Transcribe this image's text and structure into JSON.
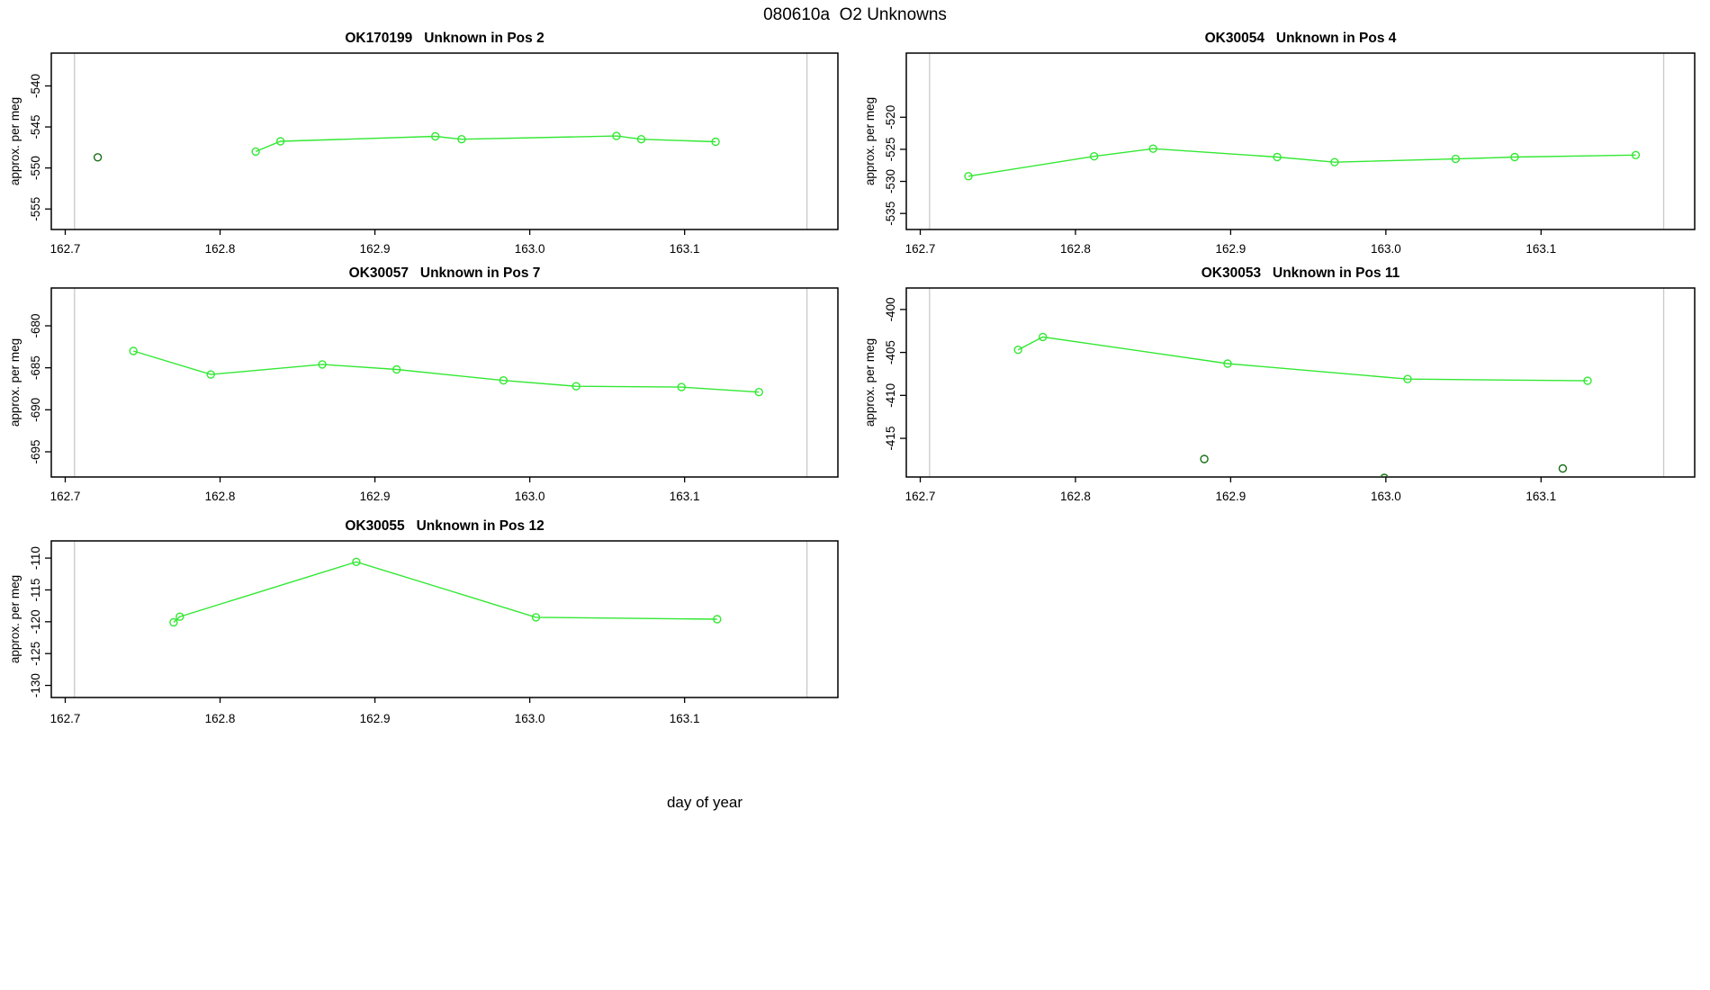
{
  "main_title": "080610a  O2 Unknowns",
  "outer_xlabel": "day of year",
  "colors": {
    "series": "#33e833",
    "flagged": "#176e17",
    "abline": "#c8c8c8",
    "axis": "#000000",
    "background": "#ffffff"
  },
  "chart_data": [
    {
      "type": "line",
      "title": "OK170199   Unknown in Pos 2",
      "sample_id": "OK170199",
      "condition": "Unknown in Pos 2",
      "ylabel": "approx. per meg",
      "xlim": [
        162.691,
        163.199
      ],
      "ylim": [
        -557.5,
        -536.0
      ],
      "xticks": [
        162.7,
        162.8,
        162.9,
        163.0,
        163.1
      ],
      "xtick_labels": [
        "162.7",
        "162.8",
        "162.9",
        "163.0",
        "163.1"
      ],
      "yticks": [
        -540,
        -545,
        -550,
        -555
      ],
      "ytick_labels": [
        "-540",
        "-545",
        "-550",
        "-555"
      ],
      "ablines_x": [
        162.706,
        163.179
      ],
      "series": [
        {
          "name": "run-values",
          "color_key": "series",
          "line": true,
          "points": [
            [
              162.823,
              -548.0
            ],
            [
              162.839,
              -546.75
            ],
            [
              162.939,
              -546.15
            ],
            [
              162.956,
              -546.5
            ],
            [
              163.056,
              -546.1
            ],
            [
              163.072,
              -546.5
            ],
            [
              163.12,
              -546.8
            ]
          ]
        },
        {
          "name": "flagged-values",
          "color_key": "flagged",
          "line": false,
          "points": [
            [
              162.721,
              -548.7
            ]
          ]
        }
      ]
    },
    {
      "type": "line",
      "title": "OK30054   Unknown in Pos 4",
      "sample_id": "OK30054",
      "condition": "Unknown in Pos 4",
      "ylabel": "approx. per meg",
      "xlim": [
        162.691,
        163.199
      ],
      "ylim": [
        -537.5,
        -510.0
      ],
      "xticks": [
        162.7,
        162.8,
        162.9,
        163.0,
        163.1
      ],
      "xtick_labels": [
        "162.7",
        "162.8",
        "162.9",
        "163.0",
        "163.1"
      ],
      "yticks": [
        -520,
        -525,
        -530,
        -535
      ],
      "ytick_labels": [
        "-520",
        "-525",
        "-530",
        "-535"
      ],
      "ablines_x": [
        162.706,
        163.179
      ],
      "series": [
        {
          "name": "run-values",
          "color_key": "series",
          "line": true,
          "points": [
            [
              162.731,
              -529.2
            ],
            [
              162.812,
              -526.1
            ],
            [
              162.85,
              -524.9
            ],
            [
              162.93,
              -526.2
            ],
            [
              162.967,
              -527.0
            ],
            [
              163.045,
              -526.5
            ],
            [
              163.083,
              -526.2
            ],
            [
              163.161,
              -525.9
            ]
          ]
        }
      ]
    },
    {
      "type": "line",
      "title": "OK30057   Unknown in Pos 7",
      "sample_id": "OK30057",
      "condition": "Unknown in Pos 7",
      "ylabel": "approx. per meg",
      "xlim": [
        162.691,
        163.199
      ],
      "ylim": [
        -698.0,
        -675.5
      ],
      "xticks": [
        162.7,
        162.8,
        162.9,
        163.0,
        163.1
      ],
      "xtick_labels": [
        "162.7",
        "162.8",
        "162.9",
        "163.0",
        "163.1"
      ],
      "yticks": [
        -680,
        -685,
        -690,
        -695
      ],
      "ytick_labels": [
        "-680",
        "-685",
        "-690",
        "-695"
      ],
      "ablines_x": [
        162.706,
        163.179
      ],
      "series": [
        {
          "name": "run-values",
          "color_key": "series",
          "line": true,
          "points": [
            [
              162.744,
              -683.0
            ],
            [
              162.794,
              -685.8
            ],
            [
              162.866,
              -684.6
            ],
            [
              162.914,
              -685.2
            ],
            [
              162.983,
              -686.5
            ],
            [
              163.03,
              -687.2
            ],
            [
              163.098,
              -687.3
            ],
            [
              163.148,
              -687.9
            ]
          ]
        }
      ]
    },
    {
      "type": "line",
      "title": "OK30053   Unknown in Pos 11",
      "sample_id": "OK30053",
      "condition": "Unknown in Pos 11",
      "ylabel": "approx. per meg",
      "xlim": [
        162.691,
        163.199
      ],
      "ylim": [
        -419.5,
        -397.5
      ],
      "xticks": [
        162.7,
        162.8,
        162.9,
        163.0,
        163.1
      ],
      "xtick_labels": [
        "162.7",
        "162.8",
        "162.9",
        "163.0",
        "163.1"
      ],
      "yticks": [
        -400,
        -405,
        -410,
        -415
      ],
      "ytick_labels": [
        "-400",
        "-405",
        "-410",
        "-415"
      ],
      "ablines_x": [
        162.706,
        163.179
      ],
      "series": [
        {
          "name": "run-values",
          "color_key": "series",
          "line": true,
          "points": [
            [
              162.763,
              -404.7
            ],
            [
              162.779,
              -403.2
            ],
            [
              162.898,
              -406.3
            ],
            [
              163.014,
              -408.1
            ],
            [
              163.13,
              -408.3
            ]
          ]
        },
        {
          "name": "flagged-values",
          "color_key": "flagged",
          "line": false,
          "points": [
            [
              162.883,
              -417.4
            ],
            [
              162.999,
              -419.6
            ],
            [
              163.114,
              -418.5
            ]
          ]
        }
      ]
    },
    {
      "type": "line",
      "title": "OK30055   Unknown in Pos 12",
      "sample_id": "OK30055",
      "condition": "Unknown in Pos 12",
      "ylabel": "approx. per meg",
      "xlim": [
        162.691,
        163.199
      ],
      "ylim": [
        -131.9,
        -107.3
      ],
      "xticks": [
        162.7,
        162.8,
        162.9,
        163.0,
        163.1
      ],
      "xtick_labels": [
        "162.7",
        "162.8",
        "162.9",
        "163.0",
        "163.1"
      ],
      "yticks": [
        -110,
        -115,
        -120,
        -125,
        -130
      ],
      "ytick_labels": [
        "-110",
        "-115",
        "-120",
        "-125",
        "-130"
      ],
      "ablines_x": [
        162.706,
        163.179
      ],
      "series": [
        {
          "name": "run-values",
          "color_key": "series",
          "line": true,
          "points": [
            [
              162.77,
              -120.1
            ],
            [
              162.774,
              -119.2
            ],
            [
              162.888,
              -110.6
            ],
            [
              163.004,
              -119.3
            ],
            [
              163.121,
              -119.6
            ]
          ]
        }
      ]
    }
  ]
}
